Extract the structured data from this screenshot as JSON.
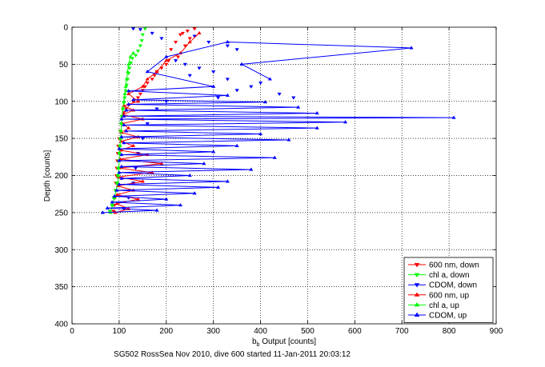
{
  "figure": {
    "caption": "SG502 RossSea Nov 2010, dive 600 started 11-Jan-2011 20:03:12"
  },
  "chart_data": {
    "type": "scatter",
    "xlabel_main": "b",
    "xlabel_sub": "b",
    "xlabel_rest": " Output [counts]",
    "ylabel": "Depth [counts]",
    "xlim": [
      0,
      900
    ],
    "ylim": [
      0,
      400
    ],
    "y_reversed": true,
    "grid": true,
    "grid_style": "dotted",
    "legend_position": "bottom-right",
    "xticks": [
      0,
      100,
      200,
      300,
      400,
      500,
      600,
      700,
      800,
      900
    ],
    "yticks": [
      0,
      50,
      100,
      150,
      200,
      250,
      300,
      350,
      400
    ],
    "series": [
      {
        "name": "600 nm, down",
        "color": "#ff0000",
        "marker": "triangle-down",
        "lines": false,
        "points": [
          [
            260,
            2
          ],
          [
            245,
            5
          ],
          [
            230,
            10
          ],
          [
            250,
            15
          ],
          [
            220,
            20
          ],
          [
            240,
            25
          ],
          [
            210,
            30
          ],
          [
            235,
            8
          ],
          [
            225,
            40
          ],
          [
            205,
            45
          ],
          [
            200,
            50
          ],
          [
            190,
            55
          ],
          [
            180,
            60
          ],
          [
            175,
            65
          ],
          [
            170,
            70
          ],
          [
            160,
            75
          ],
          [
            155,
            80
          ],
          [
            150,
            85
          ],
          [
            145,
            90
          ],
          [
            140,
            95
          ],
          [
            130,
            100
          ],
          [
            120,
            105
          ],
          [
            115,
            110
          ],
          [
            110,
            115
          ],
          [
            108,
            120
          ],
          [
            105,
            130
          ],
          [
            102,
            140
          ],
          [
            100,
            150
          ],
          [
            98,
            160
          ],
          [
            97,
            170
          ],
          [
            96,
            180
          ],
          [
            95,
            190
          ],
          [
            94,
            200
          ],
          [
            93,
            210
          ],
          [
            92,
            220
          ],
          [
            91,
            230
          ],
          [
            90,
            240
          ],
          [
            88,
            248
          ]
        ]
      },
      {
        "name": "chl a, down",
        "color": "#00ff00",
        "marker": "triangle-down",
        "lines": false,
        "points": [
          [
            155,
            2
          ],
          [
            150,
            10
          ],
          [
            148,
            18
          ],
          [
            145,
            25
          ],
          [
            140,
            32
          ],
          [
            135,
            38
          ],
          [
            128,
            42
          ],
          [
            125,
            48
          ],
          [
            122,
            55
          ],
          [
            120,
            62
          ],
          [
            118,
            70
          ],
          [
            116,
            78
          ],
          [
            114,
            86
          ],
          [
            112,
            95
          ],
          [
            110,
            102
          ],
          [
            108,
            110
          ],
          [
            106,
            120
          ],
          [
            104,
            130
          ],
          [
            103,
            140
          ],
          [
            102,
            150
          ],
          [
            101,
            160
          ],
          [
            100,
            170
          ],
          [
            99,
            180
          ],
          [
            98,
            190
          ],
          [
            97,
            200
          ],
          [
            95,
            210
          ],
          [
            92,
            220
          ],
          [
            88,
            230
          ],
          [
            85,
            240
          ],
          [
            80,
            248
          ]
        ]
      },
      {
        "name": "CDOM, down",
        "color": "#0000ff",
        "marker": "triangle-down",
        "lines": false,
        "points": [
          [
            130,
            2
          ],
          [
            145,
            3
          ],
          [
            170,
            8
          ],
          [
            190,
            15
          ],
          [
            260,
            12
          ],
          [
            290,
            20
          ],
          [
            330,
            25
          ],
          [
            350,
            30
          ],
          [
            220,
            45
          ],
          [
            240,
            50
          ],
          [
            270,
            55
          ],
          [
            300,
            60
          ],
          [
            250,
            65
          ],
          [
            330,
            70
          ],
          [
            400,
            75
          ],
          [
            380,
            80
          ],
          [
            440,
            90
          ],
          [
            470,
            95
          ],
          [
            350,
            85
          ],
          [
            310,
            95
          ],
          [
            200,
            100
          ],
          [
            180,
            110
          ],
          [
            160,
            130
          ],
          [
            150,
            150
          ],
          [
            140,
            170
          ],
          [
            135,
            190
          ],
          [
            130,
            210
          ],
          [
            120,
            230
          ],
          [
            110,
            245
          ]
        ]
      },
      {
        "name": "600 nm, up",
        "color": "#ff0000",
        "marker": "triangle-up",
        "lines": true,
        "points": [
          [
            92,
            250
          ],
          [
            120,
            245
          ],
          [
            95,
            238
          ],
          [
            140,
            232
          ],
          [
            96,
            226
          ],
          [
            130,
            220
          ],
          [
            97,
            214
          ],
          [
            150,
            208
          ],
          [
            98,
            202
          ],
          [
            170,
            196
          ],
          [
            100,
            190
          ],
          [
            190,
            184
          ],
          [
            102,
            178
          ],
          [
            160,
            172
          ],
          [
            103,
            166
          ],
          [
            130,
            160
          ],
          [
            104,
            154
          ],
          [
            140,
            148
          ],
          [
            105,
            142
          ],
          [
            120,
            136
          ],
          [
            106,
            130
          ],
          [
            150,
            124
          ],
          [
            108,
            118
          ],
          [
            130,
            112
          ],
          [
            110,
            106
          ],
          [
            140,
            100
          ],
          [
            120,
            90
          ],
          [
            150,
            80
          ],
          [
            160,
            70
          ],
          [
            180,
            60
          ],
          [
            200,
            45
          ],
          [
            230,
            35
          ],
          [
            250,
            20
          ],
          [
            270,
            8
          ]
        ]
      },
      {
        "name": "chl a, up",
        "color": "#00ff00",
        "marker": "triangle-up",
        "lines": true,
        "points": [
          [
            82,
            250
          ],
          [
            86,
            240
          ],
          [
            90,
            230
          ],
          [
            94,
            220
          ],
          [
            97,
            210
          ],
          [
            98,
            200
          ],
          [
            99,
            190
          ],
          [
            100,
            180
          ],
          [
            101,
            170
          ],
          [
            102,
            160
          ],
          [
            103,
            150
          ],
          [
            104,
            140
          ],
          [
            105,
            130
          ],
          [
            106,
            120
          ],
          [
            108,
            110
          ],
          [
            110,
            100
          ],
          [
            112,
            90
          ],
          [
            114,
            80
          ],
          [
            116,
            70
          ],
          [
            118,
            60
          ],
          [
            120,
            50
          ],
          [
            124,
            40
          ],
          [
            130,
            35
          ]
        ]
      },
      {
        "name": "CDOM, up",
        "color": "#0000ff",
        "marker": "triangle-up",
        "lines": true,
        "points": [
          [
            65,
            250
          ],
          [
            180,
            247
          ],
          [
            75,
            244
          ],
          [
            230,
            240
          ],
          [
            85,
            236
          ],
          [
            200,
            232
          ],
          [
            90,
            228
          ],
          [
            260,
            224
          ],
          [
            95,
            220
          ],
          [
            310,
            216
          ],
          [
            100,
            212
          ],
          [
            330,
            208
          ],
          [
            105,
            204
          ],
          [
            250,
            200
          ],
          [
            100,
            196
          ],
          [
            380,
            192
          ],
          [
            105,
            188
          ],
          [
            280,
            184
          ],
          [
            100,
            180
          ],
          [
            430,
            176
          ],
          [
            105,
            172
          ],
          [
            300,
            168
          ],
          [
            100,
            164
          ],
          [
            350,
            160
          ],
          [
            110,
            156
          ],
          [
            460,
            152
          ],
          [
            105,
            148
          ],
          [
            400,
            144
          ],
          [
            115,
            140
          ],
          [
            520,
            136
          ],
          [
            110,
            132
          ],
          [
            580,
            128
          ],
          [
            105,
            124
          ],
          [
            810,
            122
          ],
          [
            110,
            120
          ],
          [
            520,
            116
          ],
          [
            115,
            112
          ],
          [
            480,
            108
          ],
          [
            120,
            104
          ],
          [
            410,
            101
          ],
          [
            130,
            98
          ],
          [
            330,
            92
          ],
          [
            120,
            86
          ],
          [
            300,
            80
          ],
          [
            160,
            60
          ],
          [
            200,
            40
          ],
          [
            330,
            20
          ],
          [
            720,
            28
          ],
          [
            360,
            50
          ],
          [
            420,
            70
          ]
        ]
      }
    ]
  }
}
